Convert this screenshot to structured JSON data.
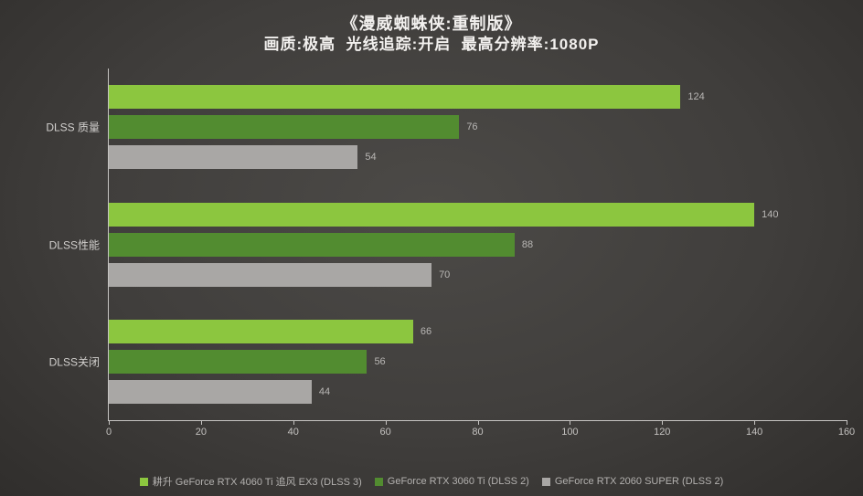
{
  "title": "《漫威蜘蛛侠:重制版》",
  "subtitle": "画质:极高  光线追踪:开启  最高分辨率:1080P",
  "chart_data": {
    "type": "bar",
    "orientation": "horizontal",
    "title": "《漫威蜘蛛侠:重制版》",
    "subtitle": "画质:极高 光线追踪:开启 最高分辨率:1080P",
    "categories": [
      "DLSS 质量",
      "DLSS性能",
      "DLSS关闭"
    ],
    "series": [
      {
        "name": "耕升 GeForce RTX 4060 Ti 追风 EX3 (DLSS 3)",
        "color": "#8cc63f",
        "values": [
          124,
          140,
          66
        ]
      },
      {
        "name": "GeForce RTX 3060 Ti (DLSS 2)",
        "color": "#528c30",
        "values": [
          76,
          88,
          56
        ]
      },
      {
        "name": "GeForce RTX 2060 SUPER (DLSS 2)",
        "color": "#a9a7a5",
        "values": [
          54,
          70,
          44
        ]
      }
    ],
    "xlabel": "",
    "ylabel": "",
    "xlim": [
      0,
      160
    ],
    "xticks": [
      0,
      20,
      40,
      60,
      80,
      100,
      120,
      140,
      160
    ],
    "grid": false,
    "legend_position": "bottom",
    "value_labels": true
  },
  "colors": {
    "value_label": "#b9b7b5",
    "axis_line": "#c6c4c2",
    "tick_label": "#c3c1bf",
    "category_label": "#d2d0ce",
    "title_text": "#f2f0ee"
  }
}
